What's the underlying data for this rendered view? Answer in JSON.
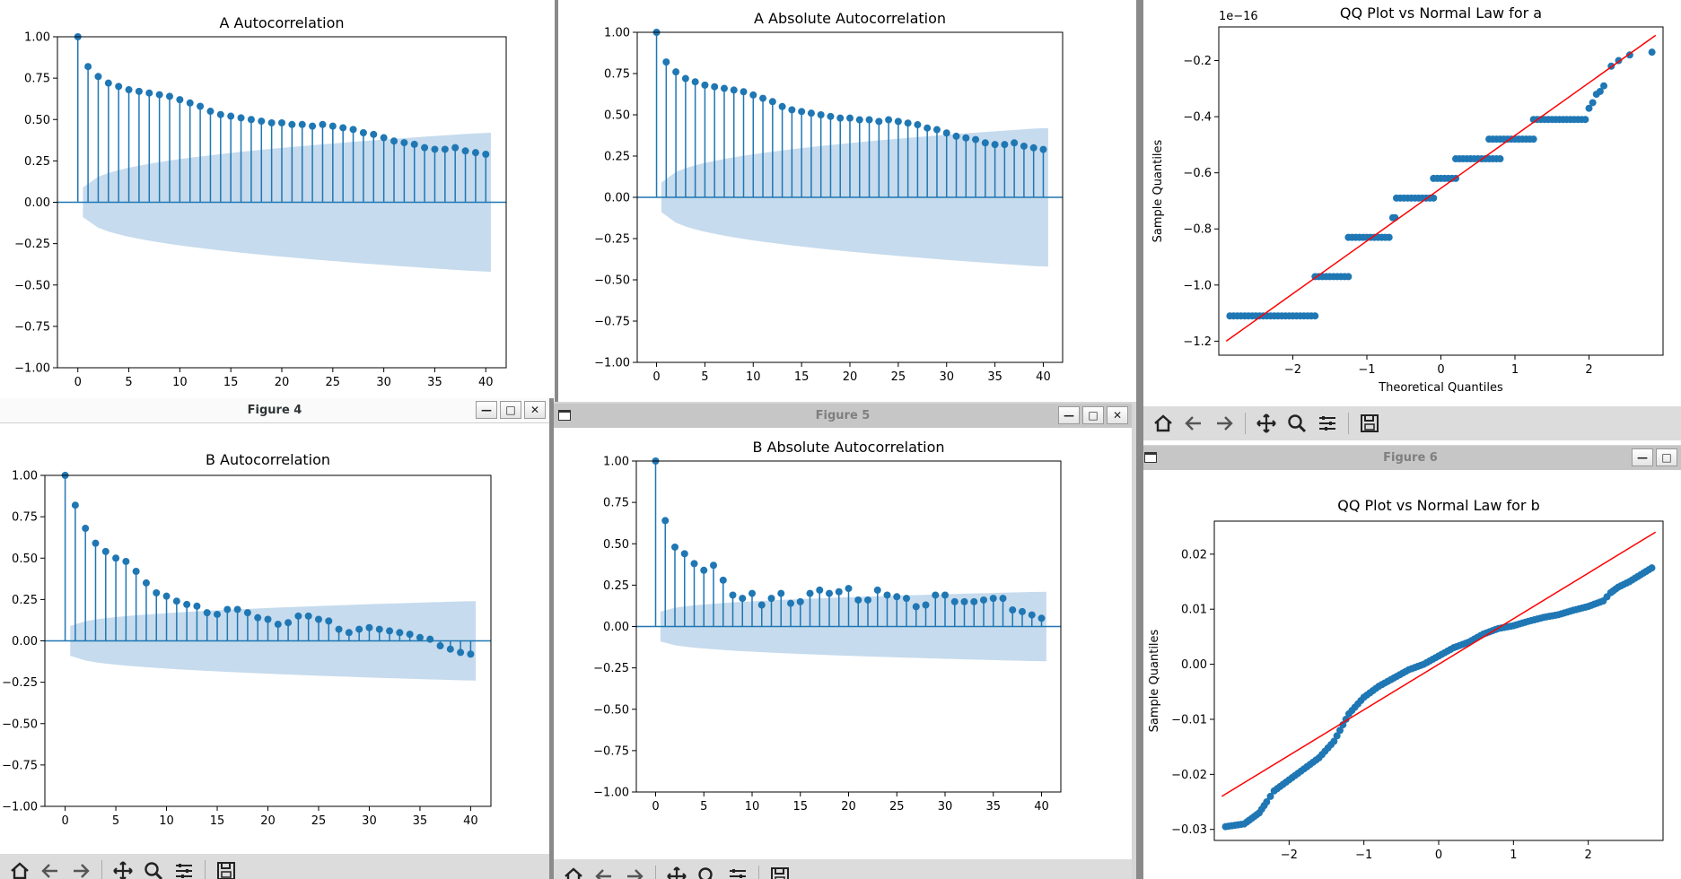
{
  "colors": {
    "marker": "#1f77b4",
    "ci_band": "#c6dbed",
    "qq_line": "#ff0000",
    "axis": "#000000"
  },
  "windows": {
    "fig1": {
      "title": "",
      "plot_title": "A Autocorrelation"
    },
    "fig2": {
      "title": "",
      "plot_title": "A Absolute Autocorrelation"
    },
    "fig3": {
      "title": "",
      "plot_title": "QQ Plot vs Normal Law for a",
      "xlabel": "Theoretical Quantiles",
      "ylabel": "Sample Quantiles",
      "offset_text": "1e−16"
    },
    "fig4": {
      "title": "Figure 4",
      "plot_title": "B Autocorrelation"
    },
    "fig5": {
      "title": "Figure 5",
      "plot_title": "B Absolute Autocorrelation"
    },
    "fig6": {
      "title": "Figure 6",
      "plot_title": "QQ Plot vs Normal Law for b",
      "xlabel": "",
      "ylabel": "Sample Quantiles"
    }
  },
  "toolbar_icons": [
    "home-icon",
    "back-icon",
    "forward-icon",
    "pan-icon",
    "zoom-icon",
    "configure-icon",
    "save-icon"
  ],
  "chart_data": [
    {
      "id": "fig1",
      "type": "stem",
      "title": "A Autocorrelation",
      "x": [
        0,
        1,
        2,
        3,
        4,
        5,
        6,
        7,
        8,
        9,
        10,
        11,
        12,
        13,
        14,
        15,
        16,
        17,
        18,
        19,
        20,
        21,
        22,
        23,
        24,
        25,
        26,
        27,
        28,
        29,
        30,
        31,
        32,
        33,
        34,
        35,
        36,
        37,
        38,
        39,
        40
      ],
      "values": [
        1.0,
        0.82,
        0.76,
        0.72,
        0.7,
        0.68,
        0.67,
        0.66,
        0.65,
        0.64,
        0.62,
        0.6,
        0.58,
        0.55,
        0.53,
        0.52,
        0.51,
        0.5,
        0.49,
        0.48,
        0.48,
        0.47,
        0.47,
        0.46,
        0.47,
        0.46,
        0.45,
        0.44,
        0.42,
        0.41,
        0.39,
        0.37,
        0.36,
        0.35,
        0.33,
        0.32,
        0.32,
        0.33,
        0.31,
        0.3,
        0.29
      ],
      "ci_upper_start": 0.09,
      "ci_upper_end": 0.42,
      "xlim": [
        -2,
        42
      ],
      "ylim": [
        -1.0,
        1.0
      ],
      "xticks": [
        0,
        5,
        10,
        15,
        20,
        25,
        30,
        35,
        40
      ],
      "xtick_labels": [
        "0",
        "5",
        "10",
        "15",
        "20",
        "25",
        "30",
        "35",
        "40"
      ],
      "yticks": [
        1.0,
        0.75,
        0.5,
        0.25,
        0.0,
        -0.25,
        -0.5,
        -0.75,
        -1.0
      ],
      "ytick_labels": [
        "1.00",
        "0.75",
        "0.50",
        "0.25",
        "0.00",
        "−0.25",
        "−0.50",
        "−0.75",
        "−1.00"
      ]
    },
    {
      "id": "fig2",
      "type": "stem",
      "title": "A Absolute Autocorrelation",
      "x": [
        0,
        1,
        2,
        3,
        4,
        5,
        6,
        7,
        8,
        9,
        10,
        11,
        12,
        13,
        14,
        15,
        16,
        17,
        18,
        19,
        20,
        21,
        22,
        23,
        24,
        25,
        26,
        27,
        28,
        29,
        30,
        31,
        32,
        33,
        34,
        35,
        36,
        37,
        38,
        39,
        40
      ],
      "values": [
        1.0,
        0.82,
        0.76,
        0.72,
        0.7,
        0.68,
        0.67,
        0.66,
        0.65,
        0.64,
        0.62,
        0.6,
        0.58,
        0.55,
        0.53,
        0.52,
        0.51,
        0.5,
        0.49,
        0.48,
        0.48,
        0.47,
        0.47,
        0.46,
        0.47,
        0.46,
        0.45,
        0.44,
        0.42,
        0.41,
        0.39,
        0.37,
        0.36,
        0.35,
        0.33,
        0.32,
        0.32,
        0.33,
        0.31,
        0.3,
        0.29
      ],
      "ci_upper_start": 0.09,
      "ci_upper_end": 0.42,
      "xlim": [
        -2,
        42
      ],
      "ylim": [
        -1.0,
        1.0
      ],
      "xticks": [
        0,
        5,
        10,
        15,
        20,
        25,
        30,
        35,
        40
      ],
      "xtick_labels": [
        "0",
        "5",
        "10",
        "15",
        "20",
        "25",
        "30",
        "35",
        "40"
      ],
      "yticks": [
        1.0,
        0.75,
        0.5,
        0.25,
        0.0,
        -0.25,
        -0.5,
        -0.75,
        -1.0
      ],
      "ytick_labels": [
        "1.00",
        "0.75",
        "0.50",
        "0.25",
        "0.00",
        "−0.25",
        "−0.50",
        "−0.75",
        "−1.00"
      ]
    },
    {
      "id": "fig3",
      "type": "scatter",
      "title": "QQ Plot vs Normal Law for a",
      "xlabel": "Theoretical Quantiles",
      "ylabel": "Sample Quantiles",
      "y_scale_text": "1e−16",
      "steps": [
        {
          "x0": -2.85,
          "x1": -1.7,
          "y": -1.11
        },
        {
          "x0": -1.7,
          "x1": -1.25,
          "y": -0.97
        },
        {
          "x0": -1.25,
          "x1": -0.7,
          "y": -0.83
        },
        {
          "x0": -0.62,
          "x1": -0.65,
          "y": -0.76
        },
        {
          "x0": -0.6,
          "x1": -0.1,
          "y": -0.69
        },
        {
          "x0": -0.1,
          "x1": 0.2,
          "y": -0.62
        },
        {
          "x0": 0.2,
          "x1": 0.8,
          "y": -0.55
        },
        {
          "x0": 0.65,
          "x1": 1.25,
          "y": -0.48
        },
        {
          "x0": 1.25,
          "x1": 1.95,
          "y": -0.41
        }
      ],
      "tail_points": [
        [
          2.0,
          -0.37
        ],
        [
          2.05,
          -0.35
        ],
        [
          2.1,
          -0.32
        ],
        [
          2.15,
          -0.31
        ],
        [
          2.2,
          -0.29
        ],
        [
          2.3,
          -0.22
        ],
        [
          2.4,
          -0.2
        ],
        [
          2.55,
          -0.18
        ],
        [
          2.85,
          -0.17
        ]
      ],
      "line": {
        "x": [
          -2.9,
          2.9
        ],
        "y": [
          -1.2,
          -0.11
        ]
      },
      "xlim": [
        -3.0,
        3.0
      ],
      "ylim": [
        -1.25,
        -0.08
      ],
      "xticks": [
        -2,
        -1,
        0,
        1,
        2
      ],
      "xtick_labels": [
        "−2",
        "−1",
        "0",
        "1",
        "2"
      ],
      "yticks": [
        -1.2,
        -1.0,
        -0.8,
        -0.6,
        -0.4,
        -0.2
      ],
      "ytick_labels": [
        "−1.2",
        "−1.0",
        "−0.8",
        "−0.6",
        "−0.4",
        "−0.2"
      ]
    },
    {
      "id": "fig4",
      "type": "stem",
      "title": "B Autocorrelation",
      "x": [
        0,
        1,
        2,
        3,
        4,
        5,
        6,
        7,
        8,
        9,
        10,
        11,
        12,
        13,
        14,
        15,
        16,
        17,
        18,
        19,
        20,
        21,
        22,
        23,
        24,
        25,
        26,
        27,
        28,
        29,
        30,
        31,
        32,
        33,
        34,
        35,
        36,
        37,
        38,
        39,
        40
      ],
      "values": [
        1.0,
        0.82,
        0.68,
        0.59,
        0.54,
        0.5,
        0.48,
        0.42,
        0.35,
        0.29,
        0.27,
        0.24,
        0.22,
        0.21,
        0.17,
        0.16,
        0.19,
        0.19,
        0.17,
        0.14,
        0.13,
        0.1,
        0.11,
        0.15,
        0.15,
        0.13,
        0.12,
        0.07,
        0.05,
        0.07,
        0.08,
        0.07,
        0.06,
        0.05,
        0.04,
        0.02,
        0.01,
        -0.03,
        -0.05,
        -0.07,
        -0.08
      ],
      "ci_upper_start": 0.09,
      "ci_upper_end": 0.24,
      "xlim": [
        -2,
        42
      ],
      "ylim": [
        -1.0,
        1.0
      ],
      "xticks": [
        0,
        5,
        10,
        15,
        20,
        25,
        30,
        35,
        40
      ],
      "xtick_labels": [
        "0",
        "5",
        "10",
        "15",
        "20",
        "25",
        "30",
        "35",
        "40"
      ],
      "yticks": [
        1.0,
        0.75,
        0.5,
        0.25,
        0.0,
        -0.25,
        -0.5,
        -0.75,
        -1.0
      ],
      "ytick_labels": [
        "1.00",
        "0.75",
        "0.50",
        "0.25",
        "0.00",
        "−0.25",
        "−0.50",
        "−0.75",
        "−1.00"
      ]
    },
    {
      "id": "fig5",
      "type": "stem",
      "title": "B Absolute Autocorrelation",
      "x": [
        0,
        1,
        2,
        3,
        4,
        5,
        6,
        7,
        8,
        9,
        10,
        11,
        12,
        13,
        14,
        15,
        16,
        17,
        18,
        19,
        20,
        21,
        22,
        23,
        24,
        25,
        26,
        27,
        28,
        29,
        30,
        31,
        32,
        33,
        34,
        35,
        36,
        37,
        38,
        39,
        40
      ],
      "values": [
        1.0,
        0.64,
        0.48,
        0.44,
        0.38,
        0.34,
        0.37,
        0.28,
        0.19,
        0.17,
        0.2,
        0.13,
        0.17,
        0.2,
        0.14,
        0.15,
        0.2,
        0.22,
        0.2,
        0.21,
        0.23,
        0.16,
        0.16,
        0.22,
        0.19,
        0.18,
        0.17,
        0.12,
        0.13,
        0.19,
        0.19,
        0.15,
        0.15,
        0.15,
        0.16,
        0.17,
        0.17,
        0.1,
        0.09,
        0.07,
        0.05
      ],
      "ci_upper_start": 0.09,
      "ci_upper_end": 0.21,
      "xlim": [
        -2,
        42
      ],
      "ylim": [
        -1.0,
        1.0
      ],
      "xticks": [
        0,
        5,
        10,
        15,
        20,
        25,
        30,
        35,
        40
      ],
      "xtick_labels": [
        "0",
        "5",
        "10",
        "15",
        "20",
        "25",
        "30",
        "35",
        "40"
      ],
      "yticks": [
        1.0,
        0.75,
        0.5,
        0.25,
        0.0,
        -0.25,
        -0.5,
        -0.75,
        -1.0
      ],
      "ytick_labels": [
        "1.00",
        "0.75",
        "0.50",
        "0.25",
        "0.00",
        "−0.25",
        "−0.50",
        "−0.75",
        "−1.00"
      ]
    },
    {
      "id": "fig6",
      "type": "scatter",
      "title": "QQ Plot vs Normal Law for b",
      "xlabel": "",
      "ylabel": "Sample Quantiles",
      "curve_points": [
        [
          -2.85,
          -0.0295
        ],
        [
          -2.6,
          -0.029
        ],
        [
          -2.5,
          -0.028
        ],
        [
          -2.4,
          -0.027
        ],
        [
          -2.3,
          -0.025
        ],
        [
          -2.2,
          -0.023
        ],
        [
          -2.0,
          -0.021
        ],
        [
          -1.8,
          -0.019
        ],
        [
          -1.6,
          -0.017
        ],
        [
          -1.4,
          -0.014
        ],
        [
          -1.2,
          -0.009
        ],
        [
          -1.0,
          -0.006
        ],
        [
          -0.8,
          -0.004
        ],
        [
          -0.6,
          -0.0025
        ],
        [
          -0.4,
          -0.001
        ],
        [
          -0.2,
          0.0
        ],
        [
          0.0,
          0.0015
        ],
        [
          0.2,
          0.003
        ],
        [
          0.4,
          0.004
        ],
        [
          0.6,
          0.0055
        ],
        [
          0.8,
          0.0065
        ],
        [
          1.0,
          0.007
        ],
        [
          1.2,
          0.0078
        ],
        [
          1.4,
          0.0085
        ],
        [
          1.6,
          0.009
        ],
        [
          1.8,
          0.0098
        ],
        [
          2.0,
          0.0105
        ],
        [
          2.2,
          0.0115
        ],
        [
          2.3,
          0.013
        ],
        [
          2.4,
          0.014
        ],
        [
          2.55,
          0.015
        ],
        [
          2.85,
          0.0175
        ]
      ],
      "line": {
        "x": [
          -2.9,
          2.9
        ],
        "y": [
          -0.024,
          0.024
        ]
      },
      "xlim": [
        -3.0,
        3.0
      ],
      "ylim": [
        -0.032,
        0.026
      ],
      "xticks": [
        -2,
        -1,
        0,
        1,
        2
      ],
      "xtick_labels": [
        "−2",
        "−1",
        "0",
        "1",
        "2"
      ],
      "yticks": [
        0.02,
        0.01,
        0.0,
        -0.01,
        -0.02,
        -0.03
      ],
      "ytick_labels": [
        "0.02",
        "0.01",
        "0.00",
        "−0.01",
        "−0.02",
        "−0.03"
      ]
    }
  ]
}
